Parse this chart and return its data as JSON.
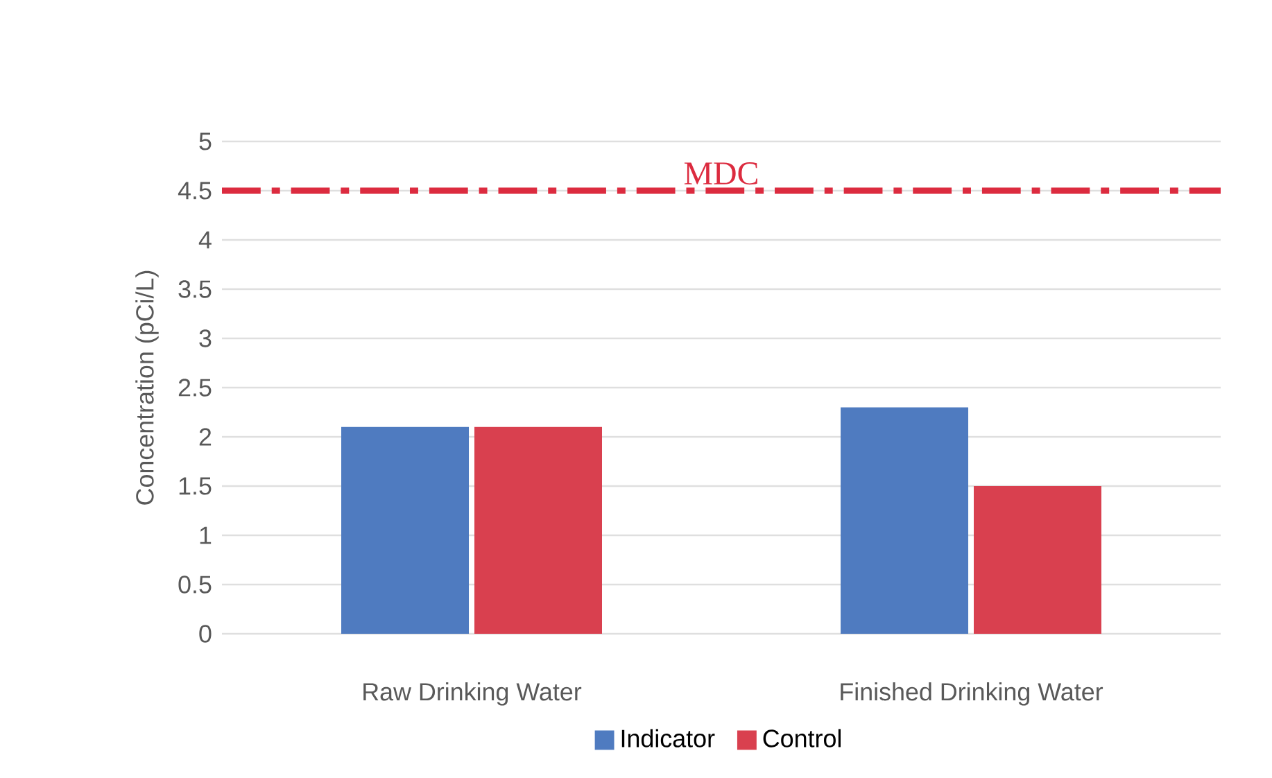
{
  "chart_data": {
    "type": "bar",
    "ylabel": "Concentration (pCi/L)",
    "categories": [
      "Raw Drinking Water",
      "Finished Drinking Water"
    ],
    "series": [
      {
        "name": "Indicator",
        "color": "#4f7bc0",
        "values": [
          2.1,
          2.3
        ]
      },
      {
        "name": "Control",
        "color": "#d9404f",
        "values": [
          2.1,
          1.5
        ]
      }
    ],
    "ylim": [
      0,
      5
    ],
    "yticks": [
      0,
      0.5,
      1,
      1.5,
      2,
      2.5,
      3,
      3.5,
      4,
      4.5,
      5
    ],
    "grid": "y",
    "legend": "bottom",
    "ref_lines": [
      {
        "axis": "y",
        "value": 4.5,
        "label": "MDC",
        "color": "#dc2b3f",
        "line_style": "dashdot"
      }
    ]
  }
}
